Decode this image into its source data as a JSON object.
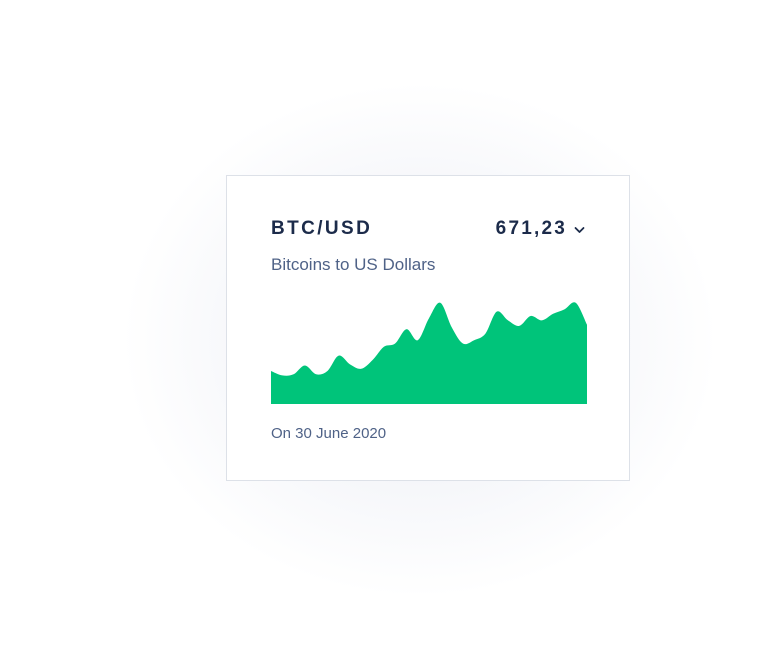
{
  "widget": {
    "pair": "BTC/USD",
    "price": "671,23",
    "price_menu_icon": "chevron-down-icon",
    "subtitle": "Bitcoins to US Dollars",
    "date": "On 30 June 2020"
  },
  "colors": {
    "accent": "#00c47a",
    "title": "#1c2b4a",
    "muted": "#4f6287",
    "border": "#dde1e8"
  },
  "chart_data": {
    "type": "area",
    "title": "",
    "xlabel": "",
    "ylabel": "",
    "ylim": [
      0,
      100
    ],
    "grid": false,
    "series": [
      {
        "values": [
          30,
          26,
          27,
          35,
          27,
          30,
          44,
          36,
          32,
          40,
          52,
          55,
          68,
          58,
          78,
          92,
          70,
          55,
          58,
          64,
          84,
          76,
          71,
          80,
          76,
          82,
          86,
          92,
          72
        ]
      }
    ]
  }
}
